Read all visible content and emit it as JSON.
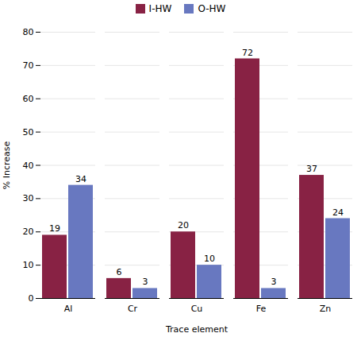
{
  "chart_data": {
    "type": "bar",
    "xlabel": "Trace element",
    "ylabel": "% Increase",
    "categories": [
      "Al",
      "Cr",
      "Cu",
      "Fe",
      "Zn"
    ],
    "series": [
      {
        "name": "I-HW",
        "color": "#882244",
        "values": [
          19,
          6,
          20,
          72,
          37
        ]
      },
      {
        "name": "O-HW",
        "color": "#6878c0",
        "values": [
          34,
          3,
          10,
          3,
          24
        ]
      }
    ],
    "ylim": [
      0,
      80
    ],
    "yticks": [
      0,
      10,
      20,
      30,
      40,
      50,
      60,
      70,
      80
    ],
    "grid": true,
    "legend": "upper center",
    "data_labels": true
  }
}
